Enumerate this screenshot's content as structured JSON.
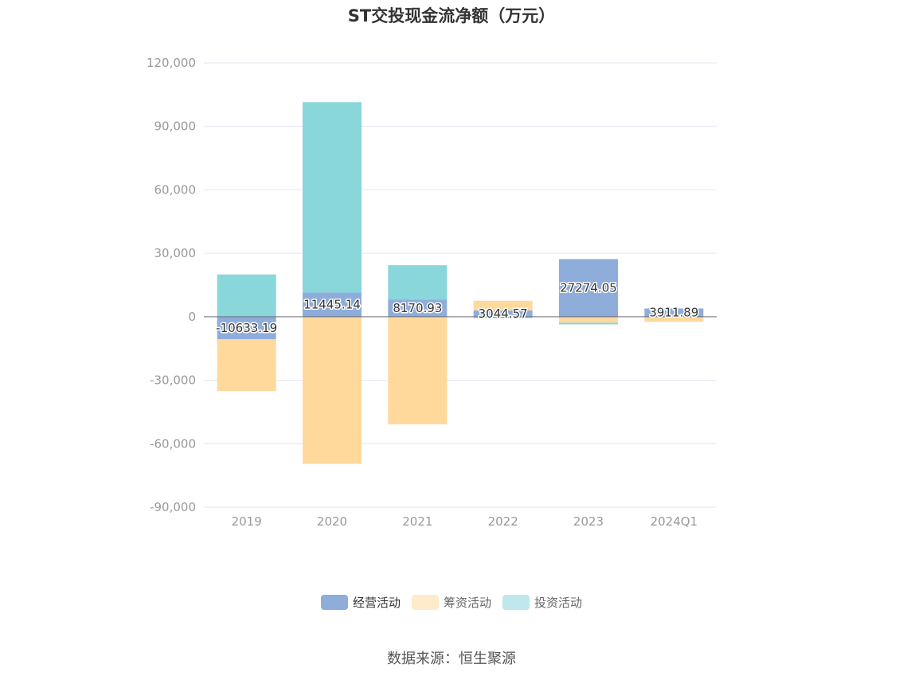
{
  "title": "ST交投现金流净额（万元）",
  "source": "数据来源：恒生聚源",
  "colors": {
    "operating": "#8EADDB",
    "financing": "#FFD99C",
    "investing": "#89D6DB",
    "grid": "#E0E6F1",
    "zero_line": "#6E7079"
  },
  "chart_data": {
    "type": "bar",
    "stacked": true,
    "categories": [
      "2019",
      "2020",
      "2021",
      "2022",
      "2023",
      "2024Q1"
    ],
    "ylim": [
      -90000,
      120000
    ],
    "yticks": [
      -90000,
      -60000,
      -30000,
      0,
      30000,
      60000,
      90000,
      120000
    ],
    "ytick_labels": [
      "-90,000",
      "-60,000",
      "-30,000",
      "0",
      "30,000",
      "60,000",
      "90,000",
      "120,000"
    ],
    "grid": true,
    "legend_position": "bottom",
    "series": [
      {
        "name": "经营活动",
        "color_key": "operating",
        "values": [
          -10633.19,
          11445.14,
          8170.93,
          3044.57,
          27274.05,
          3911.89
        ],
        "data_labels": [
          "-10633.19",
          "11445.14",
          "8170.93",
          "3044.57",
          "27274.05",
          "3911.89"
        ]
      },
      {
        "name": "筹资活动",
        "color_key": "financing",
        "values": [
          -24500,
          -69500,
          -50800,
          4500,
          -2800,
          -2000
        ]
      },
      {
        "name": "投资活动",
        "color_key": "investing",
        "values": [
          20000,
          90000,
          16200,
          -600,
          -800,
          -200
        ]
      }
    ]
  }
}
